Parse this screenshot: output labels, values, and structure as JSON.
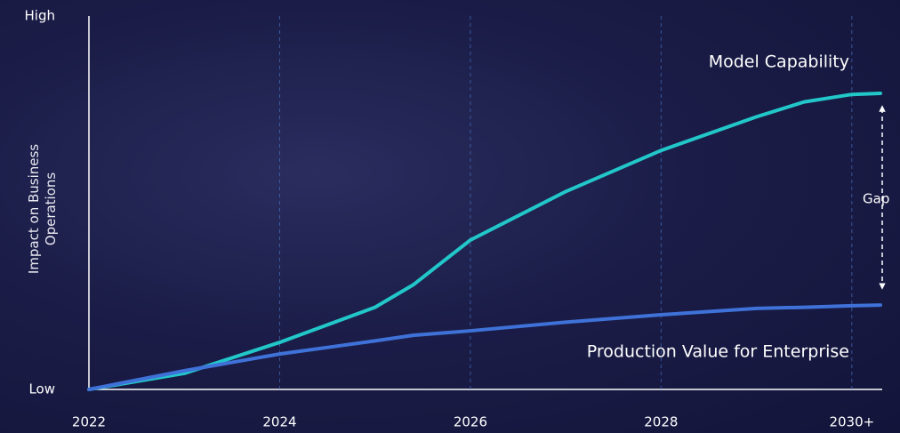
{
  "chart_data": {
    "type": "line",
    "y_label": "Impact on Business Operations",
    "x": [
      2022,
      2023,
      2024,
      2025,
      2025.4,
      2026,
      2027,
      2028,
      2029,
      2029.5,
      2030,
      2030.3
    ],
    "series": [
      {
        "name": "Model Capability",
        "color": "#22c7c9",
        "values": [
          0,
          4.3,
          12.6,
          22,
          28,
          40,
          53,
          64,
          73,
          77,
          79,
          79.3
        ]
      },
      {
        "name": "Production Value for Enterprise",
        "color": "#3f72d8",
        "values": [
          0,
          5,
          9.5,
          13,
          14.5,
          15.7,
          18,
          20,
          21.7,
          22,
          22.4,
          22.6
        ]
      }
    ],
    "annotations": [
      "Gap"
    ],
    "xlim": [
      2022,
      2030.3
    ],
    "xticks": [
      2022,
      2024,
      2026,
      2028,
      {
        "value": 2030,
        "label": "2030+"
      }
    ],
    "ylim": [
      0,
      100
    ],
    "yticks": [
      {
        "value": 0,
        "label": "Low"
      },
      {
        "value": 100,
        "label": "High"
      }
    ],
    "grid": true
  }
}
